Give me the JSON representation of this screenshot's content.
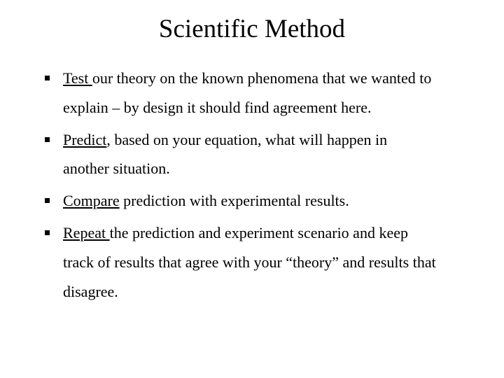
{
  "title": "Scientific Method",
  "items": [
    {
      "keyword": "Test ",
      "rest_line1": "our theory on the known phenomena that we wanted to",
      "rest_line2": "explain – by design it should find agreement here."
    },
    {
      "keyword": "Predict",
      "rest_line1": ", based on your equation, what will happen in",
      "rest_line2": "another situation."
    },
    {
      "keyword": "Compare",
      "rest_line1": " prediction with experimental results.",
      "rest_line2": ""
    },
    {
      "keyword": "Repeat ",
      "rest_line1": "the prediction and experiment scenario and keep",
      "rest_line2": "track of results that agree with your “theory” and results that disagree."
    }
  ],
  "colors": {
    "background": "#ffffff",
    "text": "#000000",
    "bullet": "#000000"
  },
  "typography": {
    "title_fontsize": 37,
    "body_fontsize": 22,
    "font_family": "Times New Roman"
  }
}
